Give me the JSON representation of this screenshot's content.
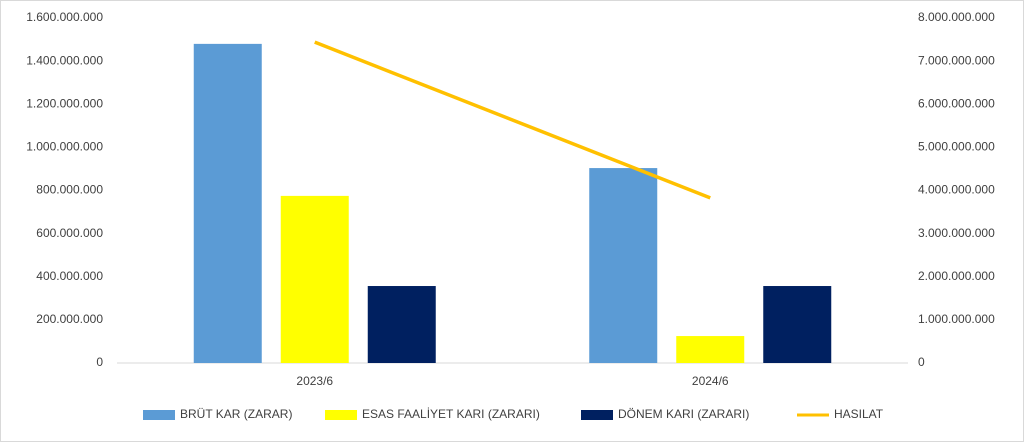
{
  "chart_data": {
    "type": "bar-line",
    "categories": [
      "2023/6",
      "2024/6"
    ],
    "series": [
      {
        "name": "BRÜT KAR (ZARAR)",
        "color": "#5b9bd5",
        "type": "bar",
        "values": [
          1480000000,
          904000000
        ]
      },
      {
        "name": "ESAS FAALİYET KARI (ZARARI)",
        "color": "#ffff00",
        "type": "bar",
        "values": [
          775000000,
          125000000
        ]
      },
      {
        "name": "DÖNEM KARI (ZARARI)",
        "color": "#002060",
        "type": "bar",
        "values": [
          357000000,
          357000000
        ]
      },
      {
        "name": "HASILAT",
        "color": "#ffc000",
        "type": "line",
        "axis": "y2",
        "values": [
          7440000000,
          3830000000
        ]
      }
    ],
    "ylim": [
      0,
      1600000000
    ],
    "yticks": [
      0,
      {
        "value": 200000000,
        "label": "200.000.000"
      },
      {
        "value": 400000000,
        "label": "400.000.000"
      },
      {
        "value": 600000000,
        "label": "600.000.000"
      },
      {
        "value": 800000000,
        "label": "800.000.000"
      },
      {
        "value": 1000000000,
        "label": "1.000.000.000"
      },
      {
        "value": 1200000000,
        "label": "1.200.000.000"
      },
      {
        "value": 1400000000,
        "label": "1.400.000.000"
      },
      {
        "value": 1600000000,
        "label": "1.600.000.000"
      }
    ],
    "y2lim": [
      0,
      8000000000
    ],
    "y2ticks": [
      0,
      {
        "value": 1000000000,
        "label": "1.000.000.000"
      },
      {
        "value": 2000000000,
        "label": "2.000.000.000"
      },
      {
        "value": 3000000000,
        "label": "3.000.000.000"
      },
      {
        "value": 4000000000,
        "label": "4.000.000.000"
      },
      {
        "value": 5000000000,
        "label": "5.000.000.000"
      },
      {
        "value": 6000000000,
        "label": "6.000.000.000"
      },
      {
        "value": 7000000000,
        "label": "7.000.000.000"
      },
      {
        "value": 8000000000,
        "label": "8.000.000.000"
      }
    ],
    "grid": false,
    "legend": "bottom"
  }
}
